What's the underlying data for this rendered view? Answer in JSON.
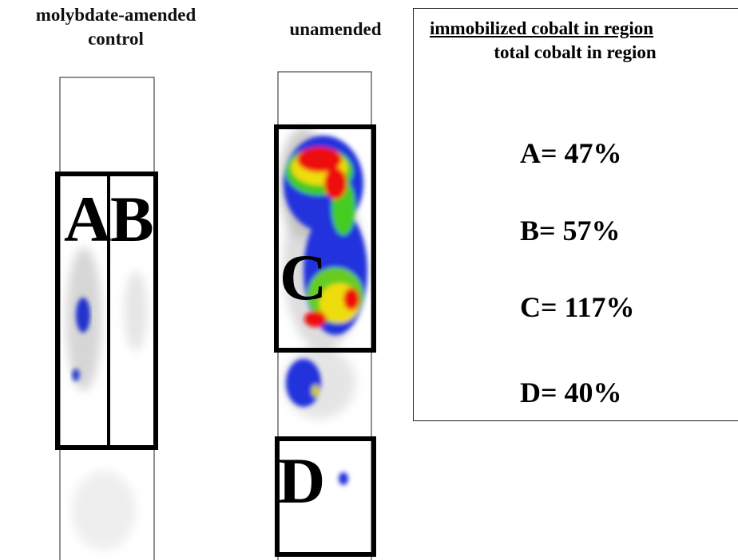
{
  "panels": [
    {
      "title": "molybdate-amended control",
      "regions": [
        "A",
        "B"
      ]
    },
    {
      "title": "unamended",
      "regions": [
        "C",
        "D"
      ]
    }
  ],
  "legend": {
    "numerator": "immobilized cobalt in region",
    "denominator": "total cobalt in region",
    "results": [
      "A= 47%",
      "B= 57%",
      "C= 117%",
      "D= 40%"
    ]
  }
}
